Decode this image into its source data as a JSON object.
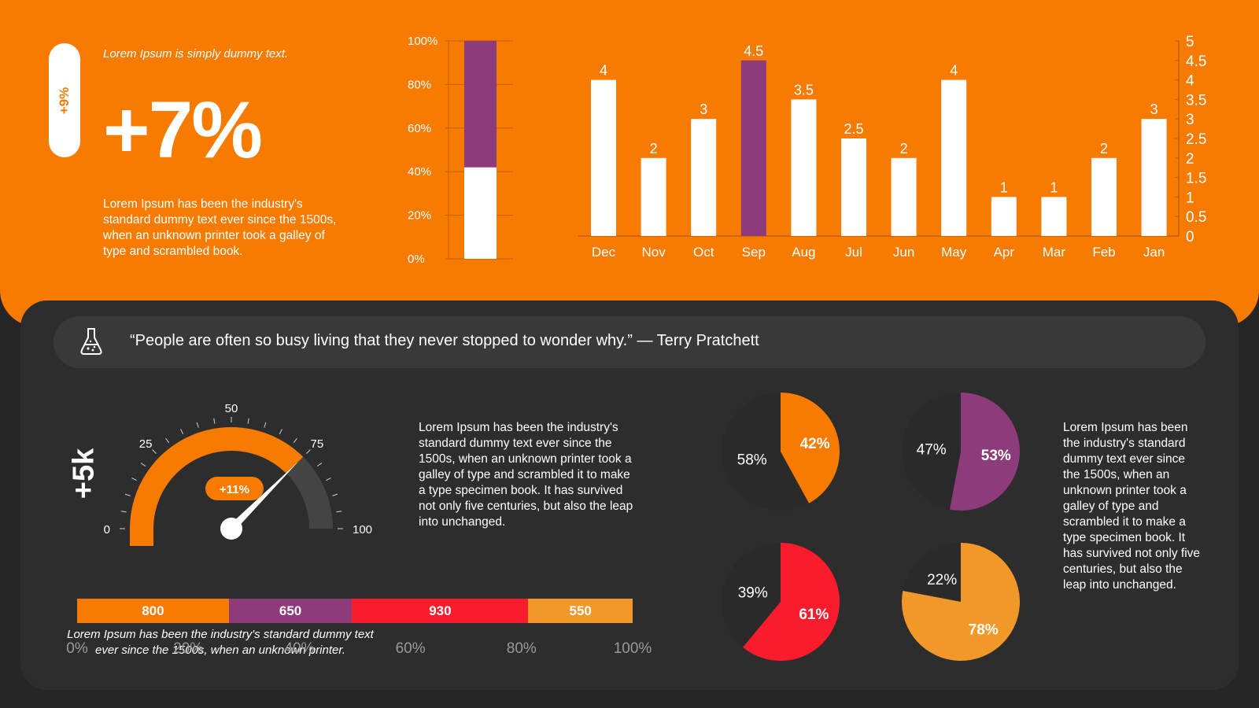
{
  "header": {
    "badge": "+9%",
    "intro": "Lorem Ipsum is simply dummy text.",
    "big_value": "+7%",
    "description": "Lorem Ipsum has been the industry's standard dummy text ever since the 1500s, when an unknown printer took a galley of type and scrambled book."
  },
  "quote": {
    "icon": "flask-icon",
    "text": "“People are often so busy living that they never stopped to wonder why.” — Terry Pratchett"
  },
  "side_label": "+5k",
  "mid_text": "Lorem Ipsum has been the industry's standard dummy text ever since the 1500s, when an unknown printer took a galley of type and scrambled it to make a type specimen book. It has survived not only five centuries, but also the leap into unchanged.",
  "right_text": "Lorem Ipsum has been the industry's standard dummy text ever since the 1500s, when an unknown printer took a galley of type and scrambled it to make a type specimen book. It has survived not only five centuries, but also the leap into unchanged.",
  "stack_note": "Lorem Ipsum has been the industry's standard dummy text ever since the 1500s, when an unknown printer.",
  "colors": {
    "orange": "#F77B00",
    "purple": "#8E3B7C",
    "red": "#F91C2D",
    "amber": "#F0982A",
    "dark": "#2D2D2D",
    "gauge_gray": "#444444"
  },
  "chart_data": [
    {
      "type": "bar",
      "subtype": "stacked-percent",
      "ylim": [
        0,
        100
      ],
      "yticks": [
        "0%",
        "20%",
        "40%",
        "60%",
        "80%",
        "100%"
      ],
      "series": [
        {
          "color": "#FFFFFF",
          "values": [
            42
          ]
        },
        {
          "color": "#8E3B7C",
          "values": [
            58
          ]
        }
      ],
      "grid": false
    },
    {
      "type": "bar",
      "categories": [
        "Dec",
        "Nov",
        "Oct",
        "Sep",
        "Aug",
        "Jul",
        "Jun",
        "May",
        "Apr",
        "Mar",
        "Feb",
        "Jan"
      ],
      "values": [
        4,
        2,
        3,
        4.5,
        3.5,
        2.5,
        2,
        4,
        1,
        1,
        2,
        3
      ],
      "labels": [
        "4",
        "2",
        "3",
        "4.5",
        "3.5",
        "2.5",
        "2",
        "4",
        "1",
        "1",
        "2",
        "3"
      ],
      "highlight_index": 3,
      "ylim": [
        0,
        5
      ],
      "yticks": [
        "0",
        "0.5",
        "1",
        "1.5",
        "2",
        "2.5",
        "3",
        "3.5",
        "4",
        "4.5",
        "5"
      ],
      "y_axis_side": "right",
      "grid": false
    },
    {
      "type": "gauge",
      "range": [
        0,
        100
      ],
      "tick_labels": [
        "0",
        "25",
        "50",
        "75",
        "100"
      ],
      "value": 75,
      "badge": "+11%"
    },
    {
      "type": "bar",
      "subtype": "stacked-horizontal",
      "segments": [
        {
          "label": "800",
          "value": 800,
          "color": "#F77B00"
        },
        {
          "label": "650",
          "value": 650,
          "color": "#8E3B7C"
        },
        {
          "label": "930",
          "value": 930,
          "color": "#F91C2D"
        },
        {
          "label": "550",
          "value": 550,
          "color": "#F0982A"
        }
      ],
      "xticks": [
        "0%",
        "20%",
        "40%",
        "60%",
        "80%",
        "100%"
      ]
    },
    {
      "type": "pie",
      "pies": [
        {
          "value": 42,
          "value_label": "42%",
          "rest_label": "58%",
          "color": "#F77B00"
        },
        {
          "value": 53,
          "value_label": "53%",
          "rest_label": "47%",
          "color": "#8E3B7C"
        },
        {
          "value": 61,
          "value_label": "61%",
          "rest_label": "39%",
          "color": "#F91C2D"
        },
        {
          "value": 78,
          "value_label": "78%",
          "rest_label": "22%",
          "color": "#F0982A"
        }
      ]
    }
  ]
}
